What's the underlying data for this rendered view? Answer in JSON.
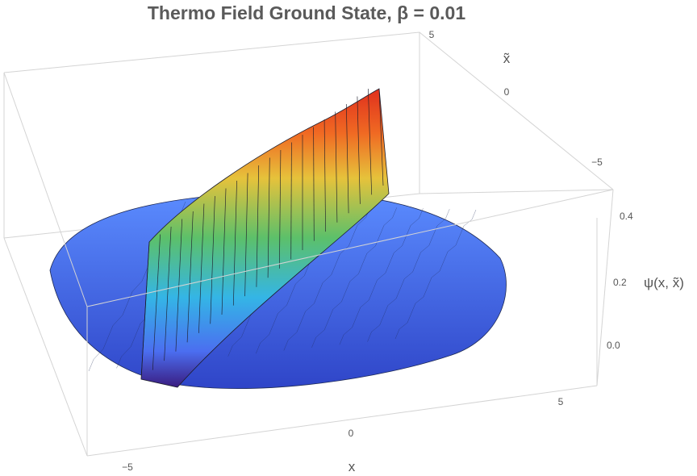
{
  "chart_data": {
    "type": "surface3d",
    "title": "Thermo Field Ground State, β = 0.01",
    "xlabel": "x",
    "ylabel": "x̃",
    "zlabel": "ψ(x, x̃)",
    "x_ticks": [
      "−5",
      "0",
      "5"
    ],
    "y_ticks": [
      "5",
      "0",
      "−5"
    ],
    "z_ticks": [
      "0.4",
      "0.2",
      "0.0"
    ],
    "xlim": [
      -6,
      6
    ],
    "ylim": [
      -6,
      6
    ],
    "zlim": [
      -0.08,
      0.45
    ],
    "ridge_along": "x = x̃",
    "ridge_peak": 0.45,
    "ridge_base": 0.24,
    "ripple_amplitude": 0.03,
    "domain": "disk",
    "colormap": [
      "#3a1c80",
      "#4b6ef0",
      "#34b5e6",
      "#5cc06a",
      "#e6c23b",
      "#f06a23",
      "#e0301d"
    ]
  }
}
